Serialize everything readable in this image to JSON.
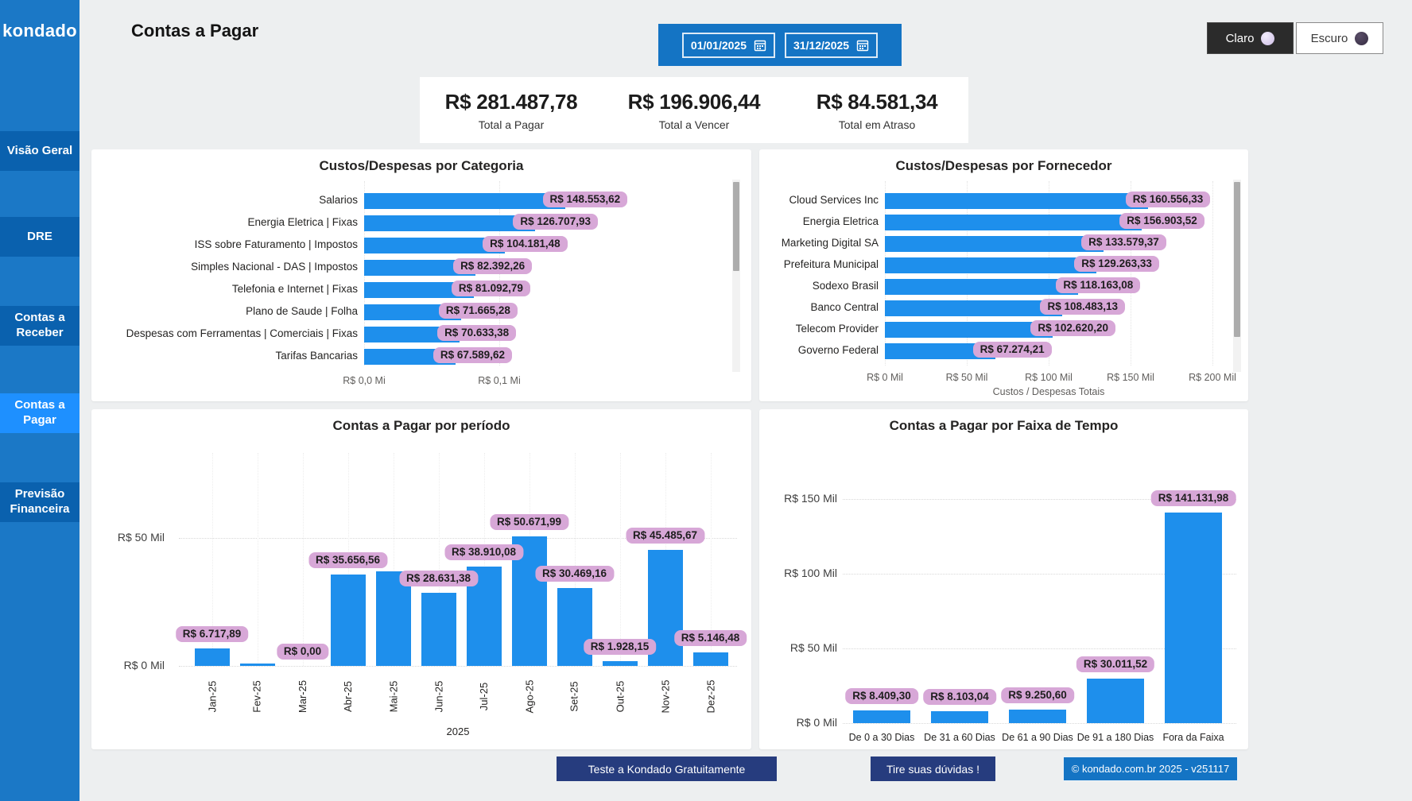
{
  "sidebar": {
    "logo": "kondado",
    "items": [
      {
        "label": "Visão Geral",
        "active": false
      },
      {
        "label": "DRE",
        "active": false
      },
      {
        "label": "Contas a Receber",
        "active": false
      },
      {
        "label": "Contas a Pagar",
        "active": true
      },
      {
        "label": "Previsão Financeira",
        "active": false
      }
    ]
  },
  "header": {
    "title": "Contas a Pagar",
    "date_from": "01/01/2025",
    "date_to": "31/12/2025",
    "theme_light_label": "Claro",
    "theme_dark_label": "Escuro"
  },
  "kpis": [
    {
      "value": "R$ 281.487,78",
      "label": "Total a Pagar"
    },
    {
      "value": "R$ 196.906,44",
      "label": "Total a Vencer"
    },
    {
      "value": "R$ 84.581,34",
      "label": "Total em Atraso"
    }
  ],
  "footer": {
    "cta_trial": "Teste a Kondado Gratuitamente",
    "cta_questions": "Tire suas dúvidas !",
    "copyright": "© kondado.com.br 2025 - v251117"
  },
  "colors": {
    "sidebar_bg": "#1B78C6",
    "sidebar_item": "#0A61AE",
    "sidebar_active": "#1E90FF",
    "slicer_bg": "#1474C4",
    "bar_blue": "#1E8FEC",
    "label_pill": "#D7A7D7",
    "footer_navy": "#263C7E",
    "page_bg": "#EDEFF0"
  },
  "chart_data": [
    {
      "id": "categoria",
      "type": "bar",
      "orientation": "horizontal",
      "title": "Custos/Despesas por Categoria",
      "categories": [
        "Salarios",
        "Energia Eletrica | Fixas",
        "ISS sobre Faturamento | Impostos",
        "Simples Nacional - DAS | Impostos",
        "Telefonia e Internet | Fixas",
        "Plano de Saude | Folha",
        "Despesas com Ferramentas | Comerciais | Fixas",
        "Tarifas Bancarias"
      ],
      "values": [
        148553.62,
        126707.93,
        104181.48,
        82392.26,
        81092.79,
        71665.28,
        70633.38,
        67589.62
      ],
      "labels": [
        "R$ 148.553,62",
        "R$ 126.707,93",
        "R$ 104.181,48",
        "R$ 82.392,26",
        "R$ 81.092,79",
        "R$ 71.665,28",
        "R$ 70.633,38",
        "R$ 67.589,62"
      ],
      "x_ticks": [
        {
          "label": "R$ 0,0 Mi",
          "value": 0
        },
        {
          "label": "R$ 0,1 Mi",
          "value": 100000
        }
      ],
      "xlim": [
        0,
        155000
      ],
      "grid": true,
      "scrollbar": true,
      "legend": "none"
    },
    {
      "id": "fornecedor",
      "type": "bar",
      "orientation": "horizontal",
      "title": "Custos/Despesas por Fornecedor",
      "categories": [
        "Cloud Services Inc",
        "Energia Eletrica",
        "Marketing Digital SA",
        "Prefeitura Municipal",
        "Sodexo Brasil",
        "Banco Central",
        "Telecom Provider",
        "Governo Federal"
      ],
      "values": [
        160556.33,
        156903.52,
        133579.37,
        129263.33,
        118163.08,
        108483.13,
        102620.2,
        67274.21
      ],
      "labels": [
        "R$ 160.556,33",
        "R$ 156.903,52",
        "R$ 133.579,37",
        "R$ 129.263,33",
        "R$ 118.163,08",
        "R$ 108.483,13",
        "R$ 102.620,20",
        "R$ 67.274,21"
      ],
      "x_ticks": [
        {
          "label": "R$ 0 Mil",
          "value": 0
        },
        {
          "label": "R$ 50 Mil",
          "value": 50000
        },
        {
          "label": "R$ 100 Mil",
          "value": 100000
        },
        {
          "label": "R$ 150 Mil",
          "value": 150000
        },
        {
          "label": "R$ 200 Mil",
          "value": 200000
        }
      ],
      "xlim": [
        0,
        210000
      ],
      "xlabel": "Custos / Despesas Totais",
      "grid": true,
      "scrollbar": true,
      "legend": "none"
    },
    {
      "id": "periodo",
      "type": "bar",
      "orientation": "vertical",
      "title": "Contas a Pagar por período",
      "categories": [
        "Jan-25",
        "Fev-25",
        "Mar-25",
        "Abr-25",
        "Mai-25",
        "Jun-25",
        "Jul-25",
        "Ago-25",
        "Set-25",
        "Out-25",
        "Nov-25",
        "Dez-25"
      ],
      "values": [
        6717.89,
        800,
        0,
        35656.56,
        37000,
        28631.38,
        38910.08,
        50671.99,
        30469.16,
        1928.15,
        45485.67,
        5146.48
      ],
      "labels": [
        "R$ 6.717,89",
        "",
        "R$ 0,00",
        "R$ 35.656,56",
        "",
        "R$ 28.631,38",
        "R$ 38.910,08",
        "R$ 50.671,99",
        "R$ 30.469,16",
        "R$ 1.928,15",
        "R$ 45.485,67",
        "R$ 5.146,48"
      ],
      "y_ticks": [
        {
          "label": "R$ 0 Mil",
          "value": 0
        },
        {
          "label": "R$ 50 Mil",
          "value": 50000
        }
      ],
      "ylim": [
        0,
        55000
      ],
      "xlabel": "2025",
      "grid": true,
      "legend": "none"
    },
    {
      "id": "faixa-de-tempo",
      "type": "bar",
      "orientation": "vertical",
      "title": "Contas a Pagar por Faixa de Tempo",
      "categories": [
        "De 0 a 30 Dias",
        "De 31 a 60 Dias",
        "De 61 a 90 Dias",
        "De 91 a 180 Dias",
        "Fora da Faixa"
      ],
      "values": [
        8409.3,
        8103.04,
        9250.6,
        30011.52,
        141131.98
      ],
      "labels": [
        "R$ 8.409,30",
        "R$ 8.103,04",
        "R$ 9.250,60",
        "R$ 30.011,52",
        "R$ 141.131,98"
      ],
      "y_ticks": [
        {
          "label": "R$ 0 Mil",
          "value": 0
        },
        {
          "label": "R$ 50 Mil",
          "value": 50000
        },
        {
          "label": "R$ 100 Mil",
          "value": 100000
        },
        {
          "label": "R$ 150 Mil",
          "value": 150000
        }
      ],
      "ylim": [
        0,
        160000
      ],
      "grid": true,
      "legend": "none"
    }
  ]
}
